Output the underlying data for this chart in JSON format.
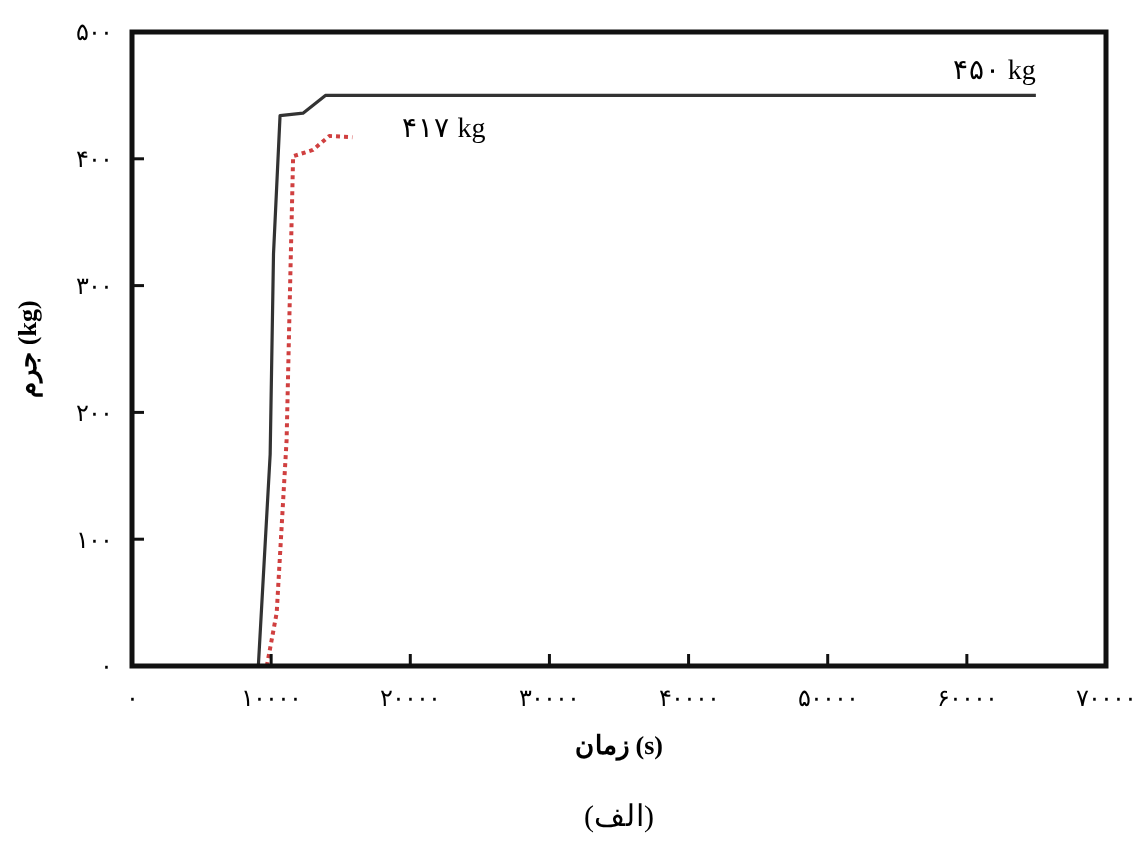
{
  "chart_data": {
    "type": "line",
    "xlabel": "زمان (s)",
    "ylabel": "جرم (kg)",
    "xlim": [
      0,
      70000
    ],
    "ylim": [
      0,
      500
    ],
    "xticks": [
      {
        "value": 0,
        "label": "۰"
      },
      {
        "value": 10000,
        "label": "۱۰۰۰۰"
      },
      {
        "value": 20000,
        "label": "۲۰۰۰۰"
      },
      {
        "value": 30000,
        "label": "۳۰۰۰۰"
      },
      {
        "value": 40000,
        "label": "۴۰۰۰۰"
      },
      {
        "value": 50000,
        "label": "۵۰۰۰۰"
      },
      {
        "value": 60000,
        "label": "۶۰۰۰۰"
      },
      {
        "value": 70000,
        "label": "۷۰۰۰۰"
      }
    ],
    "yticks": [
      {
        "value": 0,
        "label": "۰"
      },
      {
        "value": 100,
        "label": "۱۰۰"
      },
      {
        "value": 200,
        "label": "۲۰۰"
      },
      {
        "value": 300,
        "label": "۳۰۰"
      },
      {
        "value": 400,
        "label": "۴۰۰"
      },
      {
        "value": 500,
        "label": "۵۰۰"
      }
    ],
    "series": [
      {
        "color": "#333333",
        "line_style": "solid",
        "x": [
          9080,
          9930,
          10170,
          10640,
          12290,
          13900,
          64960
        ],
        "values": [
          0,
          167,
          325,
          434,
          436,
          450,
          450
        ]
      },
      {
        "color": "#d04040",
        "line_style": "dotted",
        "x": [
          9690,
          10400,
          11110,
          11350,
          11580,
          13000,
          14180,
          15840
        ],
        "values": [
          0,
          42,
          178,
          294,
          402,
          407,
          418,
          417
        ]
      }
    ],
    "annotations": [
      {
        "text": "۴۱۷ kg",
        "x": 15840,
        "y": 417
      },
      {
        "text": "۴۵۰ kg",
        "x": 64960,
        "y": 450
      },
      "(الف)"
    ],
    "grid": false
  }
}
